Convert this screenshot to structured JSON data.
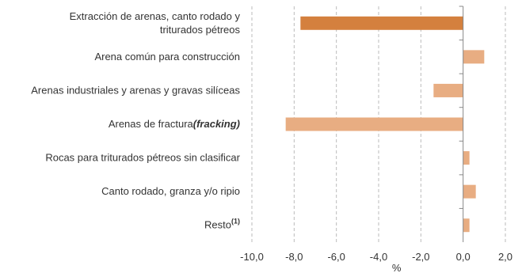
{
  "chart_data": {
    "type": "bar",
    "orientation": "horizontal",
    "categories": [
      {
        "lines": [
          "Extracción de arenas, canto rodado y",
          "triturados pétreos"
        ],
        "highlight": true
      },
      {
        "lines": [
          "Arena común para construcción"
        ]
      },
      {
        "lines": [
          "Arenas industriales y arenas y gravas silíceas"
        ]
      },
      {
        "lines": [
          "Arenas de fractura"
        ],
        "italic_suffix": "(fracking)"
      },
      {
        "lines": [
          "Rocas para triturados pétreos sin clasificar"
        ]
      },
      {
        "lines": [
          "Canto rodado, granza y/o ripio"
        ]
      },
      {
        "lines": [
          "Resto"
        ],
        "superscript": "(1)"
      }
    ],
    "values": [
      -7.7,
      1.0,
      -1.4,
      -8.4,
      0.3,
      0.6,
      0.3
    ],
    "xlabel": "%",
    "xlim": [
      -10.0,
      2.0
    ],
    "xticks": [
      -10.0,
      -8.0,
      -6.0,
      -4.0,
      -2.0,
      0.0,
      2.0
    ],
    "tick_labels": [
      "-10,0",
      "-8,0",
      "-6,0",
      "-4,0",
      "-2,0",
      "0,0",
      "2,0"
    ],
    "grid": "vertical-dashed",
    "colors": {
      "highlight": "#d4803e",
      "normal": "#e8ad82",
      "grid": "#bbbbbb",
      "axis": "#888888"
    }
  }
}
